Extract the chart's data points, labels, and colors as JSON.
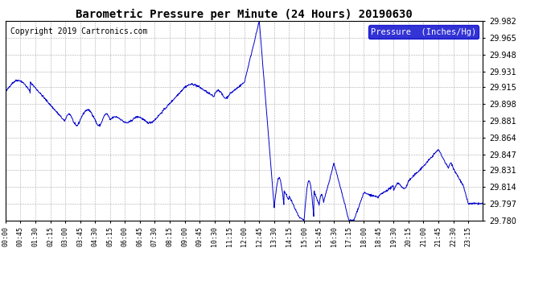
{
  "title": "Barometric Pressure per Minute (24 Hours) 20190630",
  "copyright_text": "Copyright 2019 Cartronics.com",
  "legend_label": "Pressure  (Inches/Hg)",
  "line_color": "#0000cc",
  "background_color": "#ffffff",
  "grid_color": "#aaaaaa",
  "legend_bg_color": "#0000cc",
  "legend_text_color": "#ffffff",
  "ylim": [
    29.78,
    29.982
  ],
  "yticks": [
    29.78,
    29.797,
    29.814,
    29.831,
    29.847,
    29.864,
    29.881,
    29.898,
    29.915,
    29.931,
    29.948,
    29.965,
    29.982
  ],
  "xtick_labels": [
    "00:00",
    "00:45",
    "01:30",
    "02:15",
    "03:00",
    "03:45",
    "04:30",
    "05:15",
    "06:00",
    "06:45",
    "07:30",
    "08:15",
    "09:00",
    "09:45",
    "10:30",
    "11:15",
    "12:00",
    "12:45",
    "13:30",
    "14:15",
    "15:00",
    "15:45",
    "16:30",
    "17:15",
    "18:00",
    "18:45",
    "19:30",
    "20:15",
    "21:00",
    "21:45",
    "22:30",
    "23:15"
  ],
  "title_fontsize": 10,
  "copyright_fontsize": 7,
  "ytick_fontsize": 7,
  "xtick_fontsize": 6
}
